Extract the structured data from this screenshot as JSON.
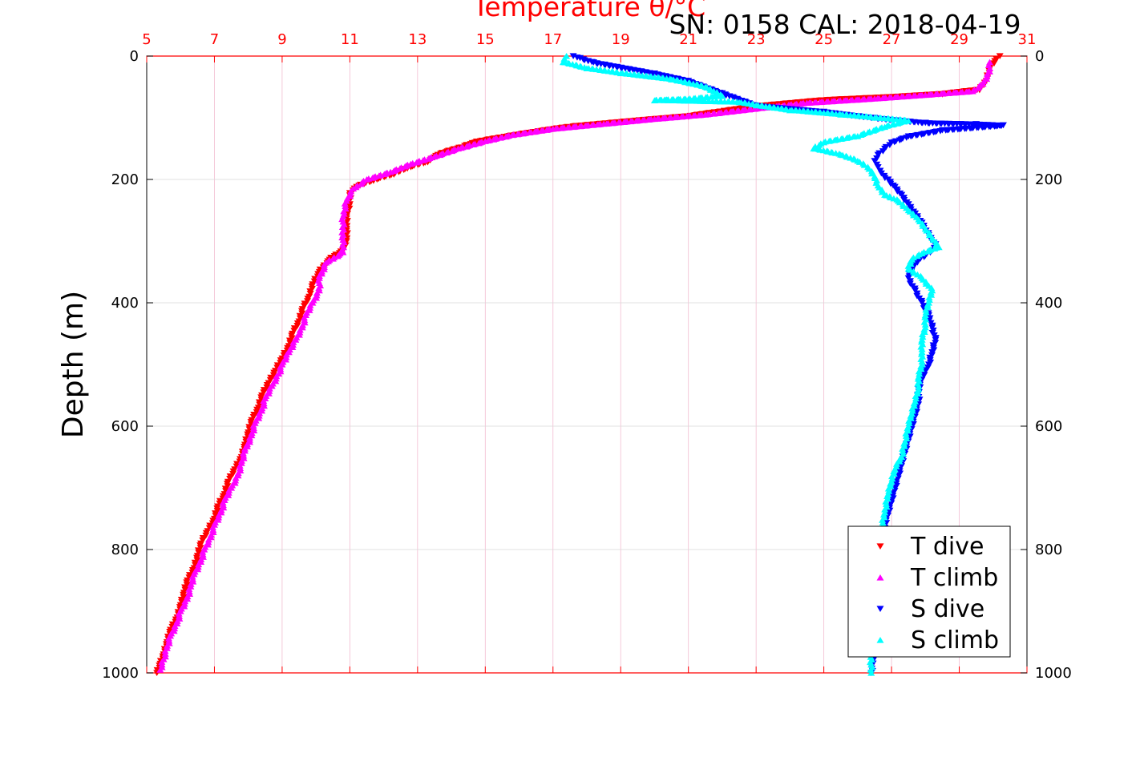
{
  "chart_data": {
    "type": "scatter",
    "title": "Temperature θ/°C",
    "subtitle": "SN: 0158  CAL: 2018-04-19",
    "xlabel": "Temperature θ/°C",
    "ylabel": "Depth (m)",
    "xlim": [
      5,
      31
    ],
    "ylim": [
      0,
      1000
    ],
    "y_reversed": true,
    "x_axis_position": "top",
    "y_axis_mirrored": true,
    "xticks": [
      5,
      7,
      9,
      11,
      13,
      15,
      17,
      19,
      21,
      23,
      25,
      27,
      29,
      31
    ],
    "xtick_labels": [
      "5",
      "7",
      "9",
      "11",
      "13",
      "15",
      "17",
      "19",
      "21",
      "23",
      "25",
      "27",
      "29",
      "31"
    ],
    "yticks": [
      0,
      200,
      400,
      600,
      800,
      1000
    ],
    "ytick_labels": [
      "0",
      "200",
      "400",
      "600",
      "800",
      "1000"
    ],
    "grid": true,
    "legend_position": "bottom-right",
    "colors": {
      "axis_x": "#ff0000",
      "axis_y": "#000000",
      "grid": "#d9d9d9",
      "grid_x": "#f2bcd0"
    },
    "series": [
      {
        "name": "T dive",
        "marker": "triangle-down",
        "color": "#ff0000",
        "points": [
          [
            30.2,
            0
          ],
          [
            30.1,
            5
          ],
          [
            29.9,
            20
          ],
          [
            29.8,
            40
          ],
          [
            29.6,
            55
          ],
          [
            28.5,
            62
          ],
          [
            27.0,
            67
          ],
          [
            25.0,
            72
          ],
          [
            23.0,
            82
          ],
          [
            22.0,
            90
          ],
          [
            21.0,
            98
          ],
          [
            19.5,
            105
          ],
          [
            17.5,
            115
          ],
          [
            16.5,
            123
          ],
          [
            15.5,
            132
          ],
          [
            14.7,
            140
          ],
          [
            14.3,
            148
          ],
          [
            13.6,
            160
          ],
          [
            13.3,
            172
          ],
          [
            12.7,
            182
          ],
          [
            12.3,
            192
          ],
          [
            11.7,
            202
          ],
          [
            11.2,
            212
          ],
          [
            11.0,
            222
          ],
          [
            11.0,
            240
          ],
          [
            10.9,
            260
          ],
          [
            10.9,
            280
          ],
          [
            10.9,
            300
          ],
          [
            10.8,
            315
          ],
          [
            10.4,
            330
          ],
          [
            10.1,
            350
          ],
          [
            9.9,
            370
          ],
          [
            9.8,
            390
          ],
          [
            9.6,
            410
          ],
          [
            9.5,
            430
          ],
          [
            9.3,
            450
          ],
          [
            9.2,
            470
          ],
          [
            9.0,
            490
          ],
          [
            8.8,
            510
          ],
          [
            8.6,
            530
          ],
          [
            8.4,
            550
          ],
          [
            8.3,
            570
          ],
          [
            8.1,
            590
          ],
          [
            8.0,
            610
          ],
          [
            7.9,
            630
          ],
          [
            7.8,
            650
          ],
          [
            7.6,
            670
          ],
          [
            7.4,
            690
          ],
          [
            7.3,
            710
          ],
          [
            7.1,
            730
          ],
          [
            7.0,
            750
          ],
          [
            6.8,
            770
          ],
          [
            6.6,
            790
          ],
          [
            6.5,
            810
          ],
          [
            6.4,
            830
          ],
          [
            6.2,
            850
          ],
          [
            6.1,
            870
          ],
          [
            6.0,
            890
          ],
          [
            5.9,
            910
          ],
          [
            5.7,
            930
          ],
          [
            5.6,
            950
          ],
          [
            5.5,
            970
          ],
          [
            5.4,
            985
          ],
          [
            5.3,
            1000
          ]
        ]
      },
      {
        "name": "T climb",
        "marker": "triangle-up",
        "color": "#ff00ff",
        "points": [
          [
            29.9,
            10
          ],
          [
            29.9,
            25
          ],
          [
            29.7,
            45
          ],
          [
            29.4,
            57
          ],
          [
            28.0,
            63
          ],
          [
            26.5,
            69
          ],
          [
            24.5,
            76
          ],
          [
            23.5,
            82
          ],
          [
            21.5,
            95
          ],
          [
            20.0,
            102
          ],
          [
            18.5,
            110
          ],
          [
            17.0,
            118
          ],
          [
            15.8,
            128
          ],
          [
            15.0,
            138
          ],
          [
            14.2,
            150
          ],
          [
            13.5,
            163
          ],
          [
            12.8,
            175
          ],
          [
            12.2,
            188
          ],
          [
            11.5,
            200
          ],
          [
            11.1,
            215
          ],
          [
            10.9,
            235
          ],
          [
            10.8,
            260
          ],
          [
            10.8,
            290
          ],
          [
            10.8,
            318
          ],
          [
            10.3,
            335
          ],
          [
            10.1,
            360
          ],
          [
            10.1,
            380
          ],
          [
            9.9,
            400
          ],
          [
            9.7,
            420
          ],
          [
            9.6,
            440
          ],
          [
            9.4,
            460
          ],
          [
            9.2,
            480
          ],
          [
            9.0,
            500
          ],
          [
            8.9,
            515
          ],
          [
            8.7,
            535
          ],
          [
            8.5,
            555
          ],
          [
            8.4,
            575
          ],
          [
            8.2,
            595
          ],
          [
            8.1,
            615
          ],
          [
            7.9,
            640
          ],
          [
            7.8,
            660
          ],
          [
            7.7,
            680
          ],
          [
            7.5,
            700
          ],
          [
            7.3,
            720
          ],
          [
            7.2,
            740
          ],
          [
            7.0,
            760
          ],
          [
            6.9,
            780
          ],
          [
            6.7,
            800
          ],
          [
            6.6,
            820
          ],
          [
            6.4,
            840
          ],
          [
            6.3,
            860
          ],
          [
            6.2,
            880
          ],
          [
            6.0,
            900
          ],
          [
            5.9,
            920
          ],
          [
            5.7,
            940
          ],
          [
            5.6,
            960
          ],
          [
            5.5,
            978
          ],
          [
            5.4,
            995
          ]
        ]
      },
      {
        "name": "S dive",
        "marker": "triangle-down",
        "color": "#0000ff",
        "points": [
          [
            17.6,
            0
          ],
          [
            17.8,
            3
          ],
          [
            18.2,
            10
          ],
          [
            20.0,
            28
          ],
          [
            21.0,
            40
          ],
          [
            22.0,
            60
          ],
          [
            23.0,
            80
          ],
          [
            25.0,
            90
          ],
          [
            26.5,
            100
          ],
          [
            28.0,
            108
          ],
          [
            29.5,
            110
          ],
          [
            30.3,
            112
          ],
          [
            28.5,
            120
          ],
          [
            27.5,
            130
          ],
          [
            27.0,
            140
          ],
          [
            26.8,
            150
          ],
          [
            26.6,
            160
          ],
          [
            26.5,
            170
          ],
          [
            26.6,
            180
          ],
          [
            26.7,
            190
          ],
          [
            26.9,
            200
          ],
          [
            27.1,
            212
          ],
          [
            27.3,
            225
          ],
          [
            27.5,
            240
          ],
          [
            27.7,
            255
          ],
          [
            27.9,
            270
          ],
          [
            28.1,
            290
          ],
          [
            28.3,
            305
          ],
          [
            28.2,
            315
          ],
          [
            27.8,
            330
          ],
          [
            27.6,
            345
          ],
          [
            27.5,
            360
          ],
          [
            27.7,
            380
          ],
          [
            27.9,
            400
          ],
          [
            28.1,
            420
          ],
          [
            28.2,
            440
          ],
          [
            28.3,
            460
          ],
          [
            28.2,
            480
          ],
          [
            28.1,
            500
          ],
          [
            27.9,
            520
          ],
          [
            27.8,
            540
          ],
          [
            27.8,
            560
          ],
          [
            27.7,
            580
          ],
          [
            27.6,
            600
          ],
          [
            27.5,
            620
          ],
          [
            27.4,
            640
          ],
          [
            27.3,
            660
          ],
          [
            27.2,
            680
          ],
          [
            27.1,
            700
          ],
          [
            27.0,
            720
          ],
          [
            26.9,
            740
          ],
          [
            26.8,
            760
          ],
          [
            26.7,
            800
          ],
          [
            26.6,
            840
          ],
          [
            26.6,
            880
          ],
          [
            26.5,
            920
          ],
          [
            26.5,
            960
          ],
          [
            26.4,
            1000
          ]
        ]
      },
      {
        "name": "S climb",
        "marker": "triangle-up",
        "color": "#00ffff",
        "points": [
          [
            17.4,
            0
          ],
          [
            17.3,
            10
          ],
          [
            18.0,
            20
          ],
          [
            19.0,
            28
          ],
          [
            20.5,
            38
          ],
          [
            21.5,
            50
          ],
          [
            22.0,
            65
          ],
          [
            21.0,
            70
          ],
          [
            20.0,
            72
          ],
          [
            22.5,
            75
          ],
          [
            23.0,
            80
          ],
          [
            24.0,
            88
          ],
          [
            25.5,
            95
          ],
          [
            26.5,
            100
          ],
          [
            27.5,
            105
          ],
          [
            26.8,
            115
          ],
          [
            26.0,
            130
          ],
          [
            25.0,
            140
          ],
          [
            24.7,
            150
          ],
          [
            25.5,
            160
          ],
          [
            26.0,
            170
          ],
          [
            26.3,
            180
          ],
          [
            26.5,
            195
          ],
          [
            26.6,
            210
          ],
          [
            26.8,
            225
          ],
          [
            27.2,
            235
          ],
          [
            27.5,
            250
          ],
          [
            27.8,
            265
          ],
          [
            28.0,
            280
          ],
          [
            28.2,
            295
          ],
          [
            28.4,
            310
          ],
          [
            27.9,
            320
          ],
          [
            27.6,
            330
          ],
          [
            27.5,
            345
          ],
          [
            27.9,
            360
          ],
          [
            28.2,
            380
          ],
          [
            28.1,
            400
          ],
          [
            28.0,
            420
          ],
          [
            28.0,
            440
          ],
          [
            27.9,
            460
          ],
          [
            27.9,
            480
          ],
          [
            27.9,
            500
          ],
          [
            27.8,
            520
          ],
          [
            27.8,
            540
          ],
          [
            27.7,
            560
          ],
          [
            27.6,
            580
          ],
          [
            27.5,
            600
          ],
          [
            27.4,
            625
          ],
          [
            27.3,
            650
          ],
          [
            27.1,
            670
          ],
          [
            27.0,
            690
          ],
          [
            26.9,
            710
          ],
          [
            26.8,
            740
          ],
          [
            26.7,
            770
          ],
          [
            26.6,
            800
          ],
          [
            26.5,
            850
          ],
          [
            26.5,
            900
          ],
          [
            26.4,
            950
          ],
          [
            26.4,
            1000
          ]
        ]
      }
    ]
  }
}
